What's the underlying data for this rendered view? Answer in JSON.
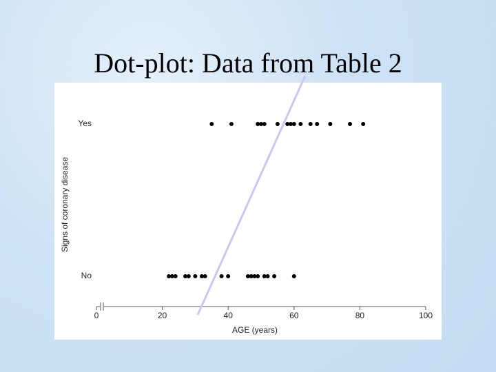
{
  "chart_data": {
    "type": "scatter",
    "title": "Dot-plot: Data from Table 2",
    "x_label": "AGE (years)",
    "y_label": "Signs of coronary disease",
    "series": [
      {
        "name": "Yes",
        "color": "#000000",
        "values": [
          35,
          41,
          49,
          50,
          51,
          55,
          58,
          59,
          60,
          62,
          65,
          67,
          71,
          77,
          81
        ]
      },
      {
        "name": "No",
        "color": "#000000",
        "values": [
          22,
          23,
          24,
          27,
          28,
          30,
          32,
          33,
          38,
          40,
          46,
          47,
          48,
          49,
          51,
          52,
          54,
          60
        ]
      }
    ],
    "xlim": [
      0,
      100
    ],
    "xticks": [
      0,
      20,
      40,
      60,
      80,
      100
    ]
  }
}
